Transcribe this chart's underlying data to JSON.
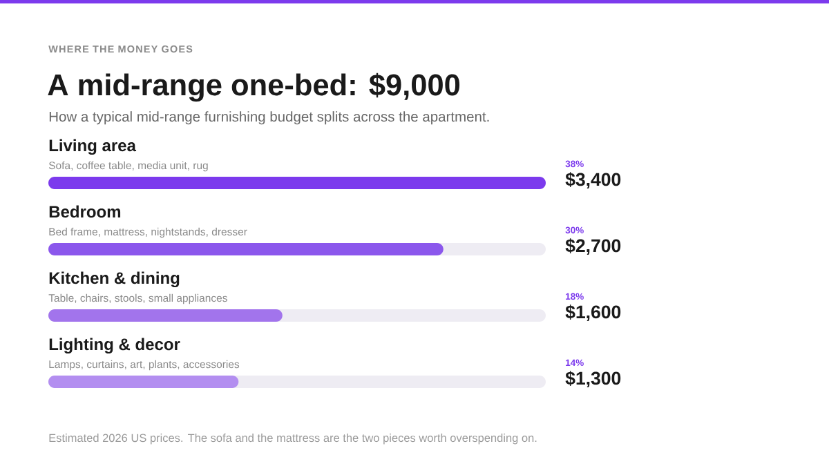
{
  "chart_data": {
    "type": "bar",
    "orientation": "horizontal",
    "title": "A mid-range one-bed: $9,000",
    "subtitle": "How a typical mid-range furnishing budget splits across the apartment.",
    "categories": [
      "Living area",
      "Bedroom",
      "Kitchen & dining",
      "Lighting & decor"
    ],
    "values": [
      3400,
      2700,
      1600,
      1300
    ],
    "colors": [
      "#7c3aed",
      "#8b57ec",
      "#a274ec",
      "#b38ef0"
    ],
    "value_labels": [
      "$3,400",
      "$2,700",
      "$1,600",
      "$1,300"
    ],
    "xlim": [
      0,
      3400
    ],
    "tick_labels": "y",
    "annotations": [
      "WHERE THE MONEY GOES",
      "Sofa, coffee table, media unit, rug",
      "38%",
      "Bed frame, mattress, nightstands, dresser",
      "30%",
      "Table, chairs, stools, small appliances",
      "18%",
      "Lamps, curtains, art, plants, accessories",
      "14%",
      "Estimated 2026 US prices. The sofa and the mattress are the two pieces worth overspending on."
    ]
  }
}
